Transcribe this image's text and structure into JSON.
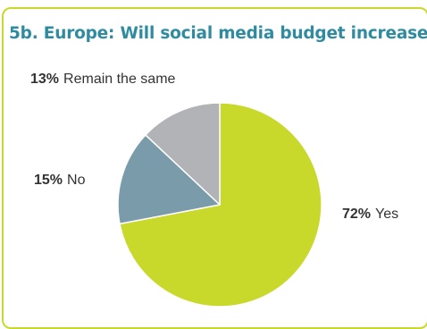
{
  "chart_data": {
    "type": "pie",
    "title": "5b. Europe: Will social media budget increase?",
    "slices": [
      {
        "label": "Yes",
        "value": 72,
        "display": "72%",
        "color": "#c8d92c"
      },
      {
        "label": "No",
        "value": 15,
        "display": "15%",
        "color": "#7a9ba9"
      },
      {
        "label": "Remain the same",
        "value": 13,
        "display": "13%",
        "color": "#b1b3b6"
      }
    ],
    "start_angle_deg": 0,
    "direction": "clockwise",
    "legend": "none"
  }
}
